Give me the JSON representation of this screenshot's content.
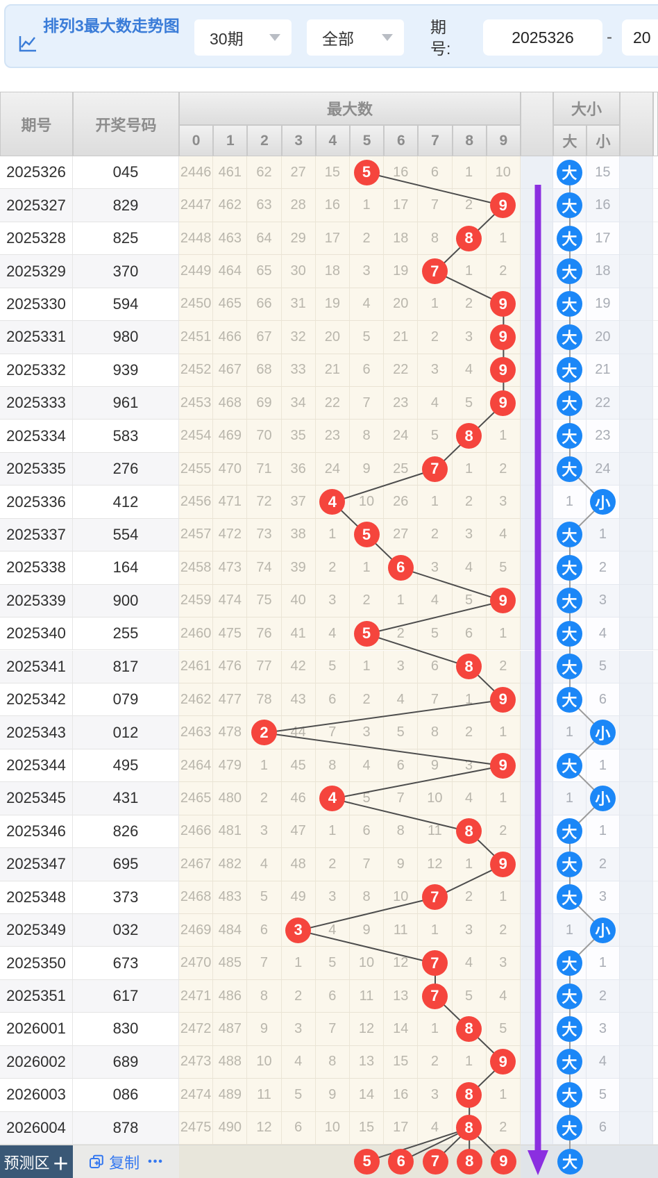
{
  "header": {
    "title": "排列3最大数走势图",
    "period_select": "30期",
    "scope_select": "全部",
    "period_label": "期号:",
    "period_from": "2025326",
    "separator": "-",
    "period_to": "20"
  },
  "table": {
    "col_period": "期号",
    "col_number": "开奖号码",
    "group_max": "最大数",
    "digit_cols": [
      "0",
      "1",
      "2",
      "3",
      "4",
      "5",
      "6",
      "7",
      "8",
      "9"
    ],
    "group_bigsmall": "大小",
    "col_big": "大",
    "col_small": "小",
    "big_label": "大",
    "small_label": "小"
  },
  "rows": [
    {
      "period": "2025326",
      "number": "045",
      "cells": [
        2446,
        461,
        62,
        27,
        15,
        5,
        16,
        6,
        1,
        10
      ],
      "hit": 5,
      "bs": "big",
      "bs_miss": 15
    },
    {
      "period": "2025327",
      "number": "829",
      "cells": [
        2447,
        462,
        63,
        28,
        16,
        1,
        17,
        7,
        2,
        9
      ],
      "hit": 9,
      "bs": "big",
      "bs_miss": 16
    },
    {
      "period": "2025328",
      "number": "825",
      "cells": [
        2448,
        463,
        64,
        29,
        17,
        2,
        18,
        8,
        8,
        1
      ],
      "hit": 8,
      "bs": "big",
      "bs_miss": 17
    },
    {
      "period": "2025329",
      "number": "370",
      "cells": [
        2449,
        464,
        65,
        30,
        18,
        3,
        19,
        7,
        1,
        2
      ],
      "hit": 7,
      "bs": "big",
      "bs_miss": 18
    },
    {
      "period": "2025330",
      "number": "594",
      "cells": [
        2450,
        465,
        66,
        31,
        19,
        4,
        20,
        1,
        2,
        9
      ],
      "hit": 9,
      "bs": "big",
      "bs_miss": 19
    },
    {
      "period": "2025331",
      "number": "980",
      "cells": [
        2451,
        466,
        67,
        32,
        20,
        5,
        21,
        2,
        3,
        9
      ],
      "hit": 9,
      "bs": "big",
      "bs_miss": 20
    },
    {
      "period": "2025332",
      "number": "939",
      "cells": [
        2452,
        467,
        68,
        33,
        21,
        6,
        22,
        3,
        4,
        9
      ],
      "hit": 9,
      "bs": "big",
      "bs_miss": 21
    },
    {
      "period": "2025333",
      "number": "961",
      "cells": [
        2453,
        468,
        69,
        34,
        22,
        7,
        23,
        4,
        5,
        9
      ],
      "hit": 9,
      "bs": "big",
      "bs_miss": 22
    },
    {
      "period": "2025334",
      "number": "583",
      "cells": [
        2454,
        469,
        70,
        35,
        23,
        8,
        24,
        5,
        8,
        1
      ],
      "hit": 8,
      "bs": "big",
      "bs_miss": 23
    },
    {
      "period": "2025335",
      "number": "276",
      "cells": [
        2455,
        470,
        71,
        36,
        24,
        9,
        25,
        7,
        1,
        2
      ],
      "hit": 7,
      "bs": "big",
      "bs_miss": 24
    },
    {
      "period": "2025336",
      "number": "412",
      "cells": [
        2456,
        471,
        72,
        37,
        4,
        10,
        26,
        1,
        2,
        3
      ],
      "hit": 4,
      "bs": "small",
      "bs_miss": 1
    },
    {
      "period": "2025337",
      "number": "554",
      "cells": [
        2457,
        472,
        73,
        38,
        1,
        5,
        27,
        2,
        3,
        4
      ],
      "hit": 5,
      "bs": "big",
      "bs_miss": 1
    },
    {
      "period": "2025338",
      "number": "164",
      "cells": [
        2458,
        473,
        74,
        39,
        2,
        1,
        6,
        3,
        4,
        5
      ],
      "hit": 6,
      "bs": "big",
      "bs_miss": 2
    },
    {
      "period": "2025339",
      "number": "900",
      "cells": [
        2459,
        474,
        75,
        40,
        3,
        2,
        1,
        4,
        5,
        9
      ],
      "hit": 9,
      "bs": "big",
      "bs_miss": 3
    },
    {
      "period": "2025340",
      "number": "255",
      "cells": [
        2460,
        475,
        76,
        41,
        4,
        5,
        2,
        5,
        6,
        1
      ],
      "hit": 5,
      "bs": "big",
      "bs_miss": 4
    },
    {
      "period": "2025341",
      "number": "817",
      "cells": [
        2461,
        476,
        77,
        42,
        5,
        1,
        3,
        6,
        8,
        2
      ],
      "hit": 8,
      "bs": "big",
      "bs_miss": 5
    },
    {
      "period": "2025342",
      "number": "079",
      "cells": [
        2462,
        477,
        78,
        43,
        6,
        2,
        4,
        7,
        1,
        9
      ],
      "hit": 9,
      "bs": "big",
      "bs_miss": 6
    },
    {
      "period": "2025343",
      "number": "012",
      "cells": [
        2463,
        478,
        2,
        44,
        7,
        3,
        5,
        8,
        2,
        1
      ],
      "hit": 2,
      "bs": "small",
      "bs_miss": 1
    },
    {
      "period": "2025344",
      "number": "495",
      "cells": [
        2464,
        479,
        1,
        45,
        8,
        4,
        6,
        9,
        3,
        9
      ],
      "hit": 9,
      "bs": "big",
      "bs_miss": 1
    },
    {
      "period": "2025345",
      "number": "431",
      "cells": [
        2465,
        480,
        2,
        46,
        4,
        5,
        7,
        10,
        4,
        1
      ],
      "hit": 4,
      "bs": "small",
      "bs_miss": 1
    },
    {
      "period": "2025346",
      "number": "826",
      "cells": [
        2466,
        481,
        3,
        47,
        1,
        6,
        8,
        11,
        8,
        2
      ],
      "hit": 8,
      "bs": "big",
      "bs_miss": 1
    },
    {
      "period": "2025347",
      "number": "695",
      "cells": [
        2467,
        482,
        4,
        48,
        2,
        7,
        9,
        12,
        1,
        9
      ],
      "hit": 9,
      "bs": "big",
      "bs_miss": 2
    },
    {
      "period": "2025348",
      "number": "373",
      "cells": [
        2468,
        483,
        5,
        49,
        3,
        8,
        10,
        7,
        2,
        1
      ],
      "hit": 7,
      "bs": "big",
      "bs_miss": 3
    },
    {
      "period": "2025349",
      "number": "032",
      "cells": [
        2469,
        484,
        6,
        3,
        4,
        9,
        11,
        1,
        3,
        2
      ],
      "hit": 3,
      "bs": "small",
      "bs_miss": 1
    },
    {
      "period": "2025350",
      "number": "673",
      "cells": [
        2470,
        485,
        7,
        1,
        5,
        10,
        12,
        7,
        4,
        3
      ],
      "hit": 7,
      "bs": "big",
      "bs_miss": 1
    },
    {
      "period": "2025351",
      "number": "617",
      "cells": [
        2471,
        486,
        8,
        2,
        6,
        11,
        13,
        7,
        5,
        4
      ],
      "hit": 7,
      "bs": "big",
      "bs_miss": 2
    },
    {
      "period": "2026001",
      "number": "830",
      "cells": [
        2472,
        487,
        9,
        3,
        7,
        12,
        14,
        1,
        8,
        5
      ],
      "hit": 8,
      "bs": "big",
      "bs_miss": 3
    },
    {
      "period": "2026002",
      "number": "689",
      "cells": [
        2473,
        488,
        10,
        4,
        8,
        13,
        15,
        2,
        1,
        9
      ],
      "hit": 9,
      "bs": "big",
      "bs_miss": 4
    },
    {
      "period": "2026003",
      "number": "086",
      "cells": [
        2474,
        489,
        11,
        5,
        9,
        14,
        16,
        3,
        8,
        1
      ],
      "hit": 8,
      "bs": "big",
      "bs_miss": 5
    },
    {
      "period": "2026004",
      "number": "878",
      "cells": [
        2475,
        490,
        12,
        6,
        10,
        15,
        17,
        4,
        8,
        2
      ],
      "hit": 8,
      "bs": "big",
      "bs_miss": 6
    }
  ],
  "footer": {
    "predict_button": "预测区",
    "predict_plus": "＋",
    "copy_label": "复制",
    "more_label": "•••",
    "hot_digits": [
      5,
      6,
      7,
      8,
      9
    ],
    "bs_circle": "大"
  },
  "colors": {
    "hit_red": "#f5453d",
    "big_blue": "#1b87f7",
    "arrow_purple": "#8b2fe0",
    "line_gray": "#4d4d4d"
  }
}
